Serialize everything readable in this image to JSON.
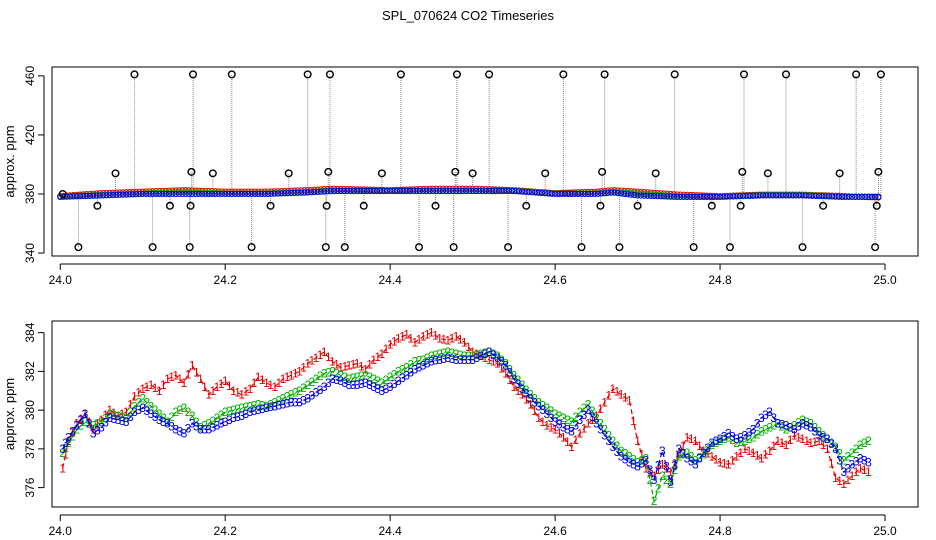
{
  "chart_data": [
    {
      "type": "scatter",
      "title": "SPL_070624  CO2 Timeseries",
      "xlabel": "",
      "ylabel": "approx. ppm",
      "xlim": [
        23.99,
        25.04
      ],
      "ylim": [
        338,
        466
      ],
      "xticks": [
        24.0,
        24.2,
        24.4,
        24.6,
        24.8,
        25.0
      ],
      "xtick_labels": [
        "24.0",
        "24.2",
        "24.4",
        "24.6",
        "24.8",
        "25.0"
      ],
      "yticks": [
        340,
        380,
        420,
        460
      ],
      "ytick_labels": [
        "340",
        "380",
        "420",
        "460"
      ],
      "colors": {
        "series1": "#e00000",
        "series2": "#00b000",
        "series3": "#0000e0",
        "spikes": "#000000",
        "guides": "#888888",
        "cyan": "#00c8c8"
      },
      "baseline": {
        "x": [
          24.0,
          24.05,
          24.1,
          24.15,
          24.2,
          24.25,
          24.3,
          24.33,
          24.4,
          24.45,
          24.5,
          24.55,
          24.6,
          24.65,
          24.67,
          24.7,
          24.75,
          24.8,
          24.85,
          24.9,
          24.95,
          24.99
        ],
        "s1": [
          378,
          380,
          381,
          382,
          381,
          381,
          382,
          383,
          382,
          383,
          383,
          382,
          380,
          381,
          382,
          381,
          379,
          378,
          379,
          379,
          378,
          377
        ],
        "s2": [
          378,
          379,
          380,
          381,
          380,
          380,
          381,
          382,
          382,
          382,
          382,
          382,
          380,
          380,
          381,
          380,
          378,
          378,
          379,
          379,
          378,
          378
        ],
        "s3": [
          378,
          379,
          380,
          380,
          380,
          380,
          381,
          382,
          382,
          382,
          382,
          382,
          380,
          380,
          381,
          379,
          378,
          378,
          379,
          379,
          378,
          378
        ]
      },
      "spikes": {
        "x": [
          24.003,
          24.022,
          24.045,
          24.067,
          24.09,
          24.112,
          24.133,
          24.157,
          24.158,
          24.159,
          24.161,
          24.185,
          24.208,
          24.232,
          24.255,
          24.277,
          24.3,
          24.322,
          24.323,
          24.325,
          24.327,
          24.345,
          24.368,
          24.39,
          24.413,
          24.435,
          24.455,
          24.477,
          24.479,
          24.481,
          24.5,
          24.52,
          24.543,
          24.565,
          24.588,
          24.61,
          24.632,
          24.655,
          24.657,
          24.66,
          24.678,
          24.7,
          24.722,
          24.745,
          24.768,
          24.79,
          24.812,
          24.825,
          24.827,
          24.829,
          24.858,
          24.88,
          24.9,
          24.925,
          24.945,
          24.965,
          24.988,
          24.99,
          24.992,
          24.995
        ],
        "y": [
          380,
          344,
          372,
          394,
          461,
          344,
          372,
          344,
          372,
          395,
          461,
          394,
          461,
          344,
          372,
          394,
          461,
          344,
          372,
          395,
          461,
          344,
          372,
          394,
          461,
          344,
          372,
          344,
          395,
          461,
          394,
          461,
          344,
          372,
          394,
          461,
          344,
          372,
          395,
          461,
          344,
          372,
          394,
          461,
          344,
          372,
          344,
          372,
          395,
          461,
          394,
          461,
          344,
          372,
          394,
          461,
          344,
          372,
          395,
          461
        ]
      }
    },
    {
      "type": "scatter",
      "title": "",
      "xlabel": "",
      "ylabel": "approx. ppm",
      "xlim": [
        23.99,
        25.04
      ],
      "ylim": [
        375,
        384.6
      ],
      "xticks": [
        24.0,
        24.2,
        24.4,
        24.6,
        24.8,
        25.0
      ],
      "xtick_labels": [
        "24.0",
        "24.2",
        "24.4",
        "24.6",
        "24.8",
        "25.0"
      ],
      "yticks": [
        376,
        378,
        380,
        382,
        384
      ],
      "ytick_labels": [
        "376",
        "378",
        "380",
        "382",
        "384"
      ],
      "colors": {
        "series1": "#e00000",
        "series2": "#00b000",
        "series3": "#0000e0"
      },
      "series": [
        {
          "name": "1",
          "x": [
            24.003,
            24.01,
            24.02,
            24.03,
            24.04,
            24.05,
            24.06,
            24.07,
            24.08,
            24.09,
            24.1,
            24.11,
            24.12,
            24.13,
            24.14,
            24.15,
            24.16,
            24.17,
            24.18,
            24.19,
            24.2,
            24.21,
            24.22,
            24.23,
            24.24,
            24.25,
            24.26,
            24.27,
            24.28,
            24.29,
            24.3,
            24.31,
            24.32,
            24.33,
            24.34,
            24.35,
            24.36,
            24.37,
            24.38,
            24.39,
            24.4,
            24.41,
            24.42,
            24.43,
            24.44,
            24.45,
            24.46,
            24.47,
            24.48,
            24.49,
            24.5,
            24.51,
            24.52,
            24.53,
            24.54,
            24.55,
            24.56,
            24.57,
            24.58,
            24.59,
            24.6,
            24.61,
            24.62,
            24.63,
            24.64,
            24.65,
            24.66,
            24.67,
            24.68,
            24.69,
            24.7,
            24.71,
            24.72,
            24.73,
            24.74,
            24.75,
            24.76,
            24.77,
            24.78,
            24.79,
            24.8,
            24.81,
            24.82,
            24.83,
            24.84,
            24.85,
            24.86,
            24.87,
            24.88,
            24.89,
            24.9,
            24.91,
            24.92,
            24.93,
            24.94,
            24.95,
            24.96,
            24.97,
            24.98
          ],
          "y": [
            377.0,
            378.4,
            379.3,
            379.8,
            379.0,
            379.5,
            380.0,
            379.7,
            379.9,
            380.7,
            381.1,
            381.3,
            381.0,
            381.6,
            381.8,
            381.4,
            382.3,
            381.6,
            380.8,
            381.2,
            381.5,
            381.0,
            380.8,
            381.1,
            381.7,
            381.4,
            381.2,
            381.6,
            381.8,
            382.0,
            382.4,
            382.7,
            383.0,
            382.5,
            382.2,
            382.3,
            382.4,
            382.1,
            382.6,
            382.9,
            383.4,
            383.7,
            383.9,
            383.5,
            383.8,
            384.0,
            383.7,
            383.6,
            383.8,
            383.5,
            383.0,
            382.8,
            382.6,
            382.4,
            381.9,
            381.2,
            380.8,
            380.3,
            379.6,
            379.2,
            379.0,
            378.6,
            378.1,
            378.8,
            379.3,
            379.7,
            380.4,
            381.1,
            380.8,
            380.5,
            378.4,
            377.0,
            376.6,
            377.2,
            376.8,
            377.7,
            378.6,
            378.4,
            377.9,
            377.6,
            377.3,
            377.2,
            377.6,
            378.0,
            377.8,
            377.5,
            377.9,
            378.4,
            378.2,
            378.7,
            378.5,
            378.3,
            378.4,
            378.0,
            376.5,
            376.2,
            376.6,
            377.0,
            376.8
          ]
        },
        {
          "name": "2",
          "x": [
            24.003,
            24.01,
            24.02,
            24.03,
            24.04,
            24.05,
            24.06,
            24.07,
            24.08,
            24.09,
            24.1,
            24.11,
            24.12,
            24.13,
            24.14,
            24.15,
            24.16,
            24.17,
            24.18,
            24.19,
            24.2,
            24.21,
            24.22,
            24.23,
            24.24,
            24.25,
            24.26,
            24.27,
            24.28,
            24.29,
            24.3,
            24.31,
            24.32,
            24.33,
            24.34,
            24.35,
            24.36,
            24.37,
            24.38,
            24.39,
            24.4,
            24.41,
            24.42,
            24.43,
            24.44,
            24.45,
            24.46,
            24.47,
            24.48,
            24.49,
            24.5,
            24.51,
            24.52,
            24.53,
            24.54,
            24.55,
            24.56,
            24.57,
            24.58,
            24.59,
            24.6,
            24.61,
            24.62,
            24.63,
            24.64,
            24.65,
            24.66,
            24.67,
            24.68,
            24.69,
            24.7,
            24.71,
            24.72,
            24.73,
            24.74,
            24.75,
            24.76,
            24.77,
            24.78,
            24.79,
            24.8,
            24.81,
            24.82,
            24.83,
            24.84,
            24.85,
            24.86,
            24.87,
            24.88,
            24.89,
            24.9,
            24.91,
            24.92,
            24.93,
            24.94,
            24.95,
            24.96,
            24.97,
            24.98
          ],
          "y": [
            377.8,
            378.3,
            379.0,
            379.4,
            379.2,
            379.4,
            379.8,
            379.7,
            379.6,
            380.2,
            380.6,
            380.2,
            379.8,
            379.4,
            379.9,
            380.1,
            379.7,
            379.1,
            379.3,
            379.6,
            379.9,
            380.0,
            380.1,
            380.2,
            380.3,
            380.2,
            380.4,
            380.6,
            380.8,
            381.0,
            381.3,
            381.6,
            381.9,
            382.0,
            381.8,
            381.6,
            381.7,
            381.8,
            381.6,
            381.4,
            381.7,
            382.0,
            382.2,
            382.5,
            382.6,
            382.8,
            382.9,
            383.0,
            382.9,
            382.8,
            382.8,
            382.9,
            383.0,
            382.8,
            382.4,
            381.8,
            381.3,
            380.8,
            380.4,
            380.1,
            379.8,
            379.6,
            379.4,
            379.9,
            380.3,
            379.6,
            379.0,
            378.4,
            377.9,
            377.6,
            377.3,
            377.5,
            375.3,
            376.6,
            376.2,
            377.6,
            377.8,
            377.4,
            377.7,
            378.2,
            378.4,
            378.6,
            378.3,
            378.4,
            378.6,
            378.9,
            379.1,
            379.3,
            379.0,
            379.2,
            379.5,
            379.3,
            378.9,
            378.5,
            378.1,
            377.4,
            377.8,
            378.2,
            378.4
          ]
        },
        {
          "name": "3",
          "x": [
            24.003,
            24.01,
            24.02,
            24.03,
            24.04,
            24.05,
            24.06,
            24.07,
            24.08,
            24.09,
            24.1,
            24.11,
            24.12,
            24.13,
            24.14,
            24.15,
            24.16,
            24.17,
            24.18,
            24.19,
            24.2,
            24.21,
            24.22,
            24.23,
            24.24,
            24.25,
            24.26,
            24.27,
            24.28,
            24.29,
            24.3,
            24.31,
            24.32,
            24.33,
            24.34,
            24.35,
            24.36,
            24.37,
            24.38,
            24.39,
            24.4,
            24.41,
            24.42,
            24.43,
            24.44,
            24.45,
            24.46,
            24.47,
            24.48,
            24.49,
            24.5,
            24.51,
            24.52,
            24.53,
            24.54,
            24.55,
            24.56,
            24.57,
            24.58,
            24.59,
            24.6,
            24.61,
            24.62,
            24.63,
            24.64,
            24.65,
            24.66,
            24.67,
            24.68,
            24.69,
            24.7,
            24.71,
            24.72,
            24.73,
            24.74,
            24.75,
            24.76,
            24.77,
            24.78,
            24.79,
            24.8,
            24.81,
            24.82,
            24.83,
            24.84,
            24.85,
            24.86,
            24.87,
            24.88,
            24.89,
            24.9,
            24.91,
            24.92,
            24.93,
            24.94,
            24.95,
            24.96,
            24.97,
            24.98
          ],
          "y": [
            378.0,
            378.6,
            379.2,
            379.8,
            378.8,
            379.1,
            379.6,
            379.5,
            379.4,
            379.9,
            380.1,
            379.8,
            379.5,
            379.3,
            379.0,
            378.8,
            379.3,
            379.0,
            379.0,
            379.2,
            379.4,
            379.6,
            379.7,
            379.9,
            380.0,
            380.1,
            380.2,
            380.3,
            380.4,
            380.4,
            380.6,
            380.9,
            381.2,
            381.6,
            381.5,
            381.3,
            381.3,
            381.4,
            381.2,
            381.0,
            381.2,
            381.5,
            381.8,
            382.1,
            382.3,
            382.5,
            382.6,
            382.7,
            382.6,
            382.6,
            382.6,
            382.8,
            383.0,
            382.7,
            382.3,
            381.6,
            381.1,
            380.6,
            380.2,
            379.8,
            379.4,
            379.1,
            378.9,
            379.5,
            380.0,
            379.3,
            378.7,
            378.1,
            377.6,
            377.3,
            377.1,
            377.4,
            376.4,
            377.9,
            376.3,
            378.0,
            377.5,
            377.2,
            377.8,
            378.3,
            378.5,
            378.8,
            378.5,
            378.7,
            379.0,
            379.6,
            379.9,
            379.3,
            379.2,
            379.0,
            379.3,
            379.1,
            378.7,
            378.5,
            378.0,
            376.8,
            377.2,
            377.5,
            377.3
          ]
        }
      ]
    }
  ]
}
